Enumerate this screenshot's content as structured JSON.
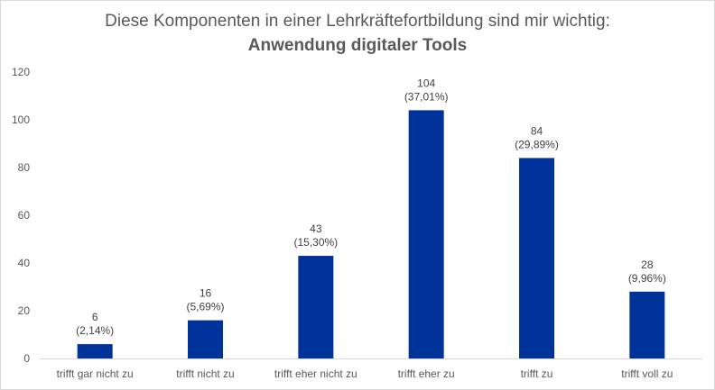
{
  "chart_data": {
    "type": "bar",
    "title": "Diese Komponenten in einer Lehrkräftefortbildung sind mir wichtig:",
    "subtitle": "Anwendung digitaler Tools",
    "categories": [
      "trifft gar nicht zu",
      "trifft nicht zu",
      "trifft eher nicht zu",
      "trifft eher zu",
      "trifft zu",
      "trifft voll zu"
    ],
    "values": [
      6,
      16,
      43,
      104,
      84,
      28
    ],
    "percent_labels": [
      "(2,14%)",
      "(5,69%)",
      "(15,30%)",
      "(37,01%)",
      "(29,89%)",
      "(9,96%)"
    ],
    "ylim": [
      0,
      120
    ],
    "yticks": [
      0,
      20,
      40,
      60,
      80,
      100,
      120
    ],
    "grid": false,
    "legend": "none",
    "bar_color": "#003399",
    "axis_color": "#d9d9d9"
  }
}
